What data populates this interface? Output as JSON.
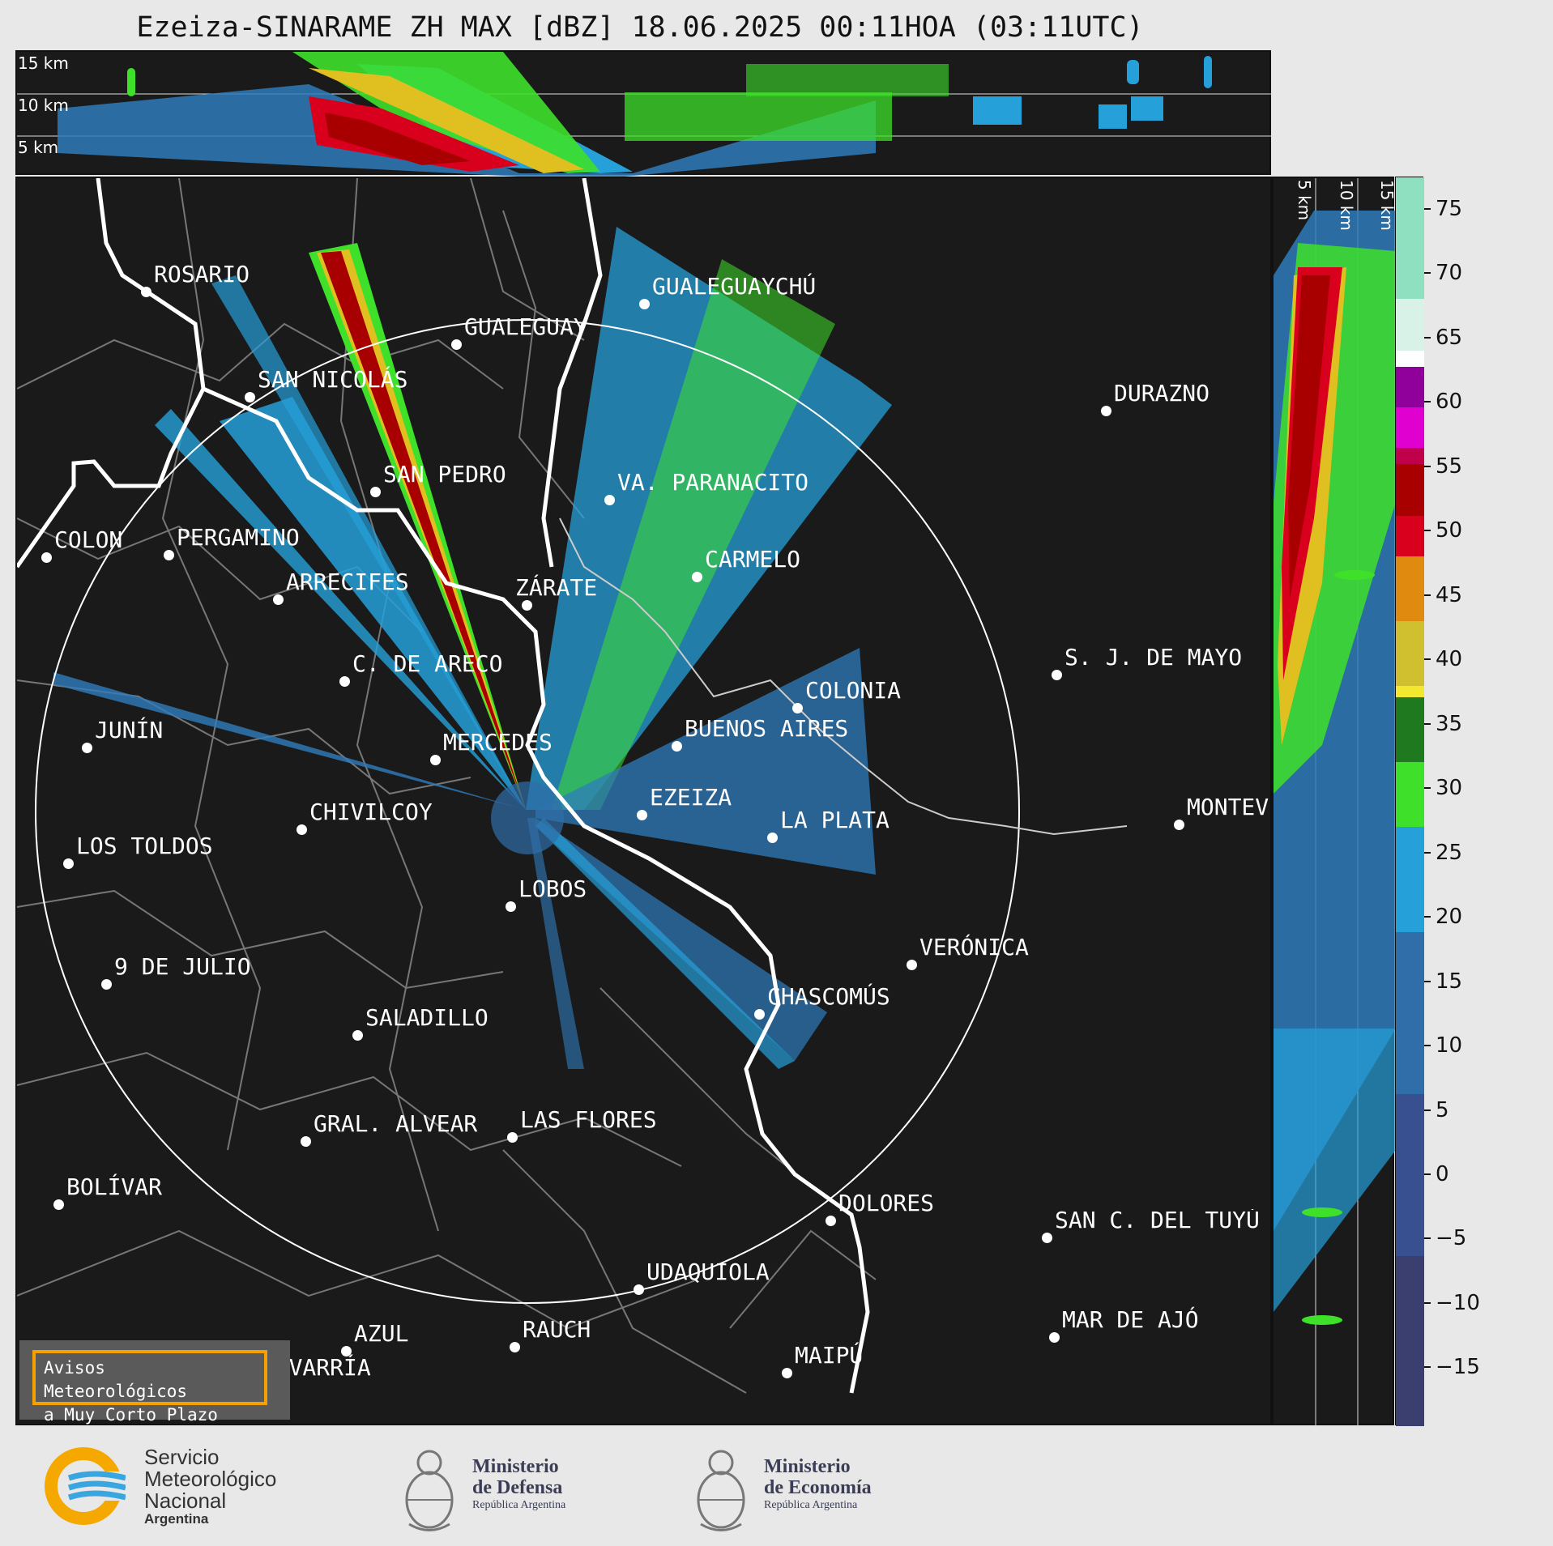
{
  "title": "Ezeiza-SINARAME ZH MAX [dBZ] 18.06.2025 00:11HOA (03:11UTC)",
  "top_panel": {
    "altitude_labels": [
      "15 km",
      "10 km",
      "5 km"
    ]
  },
  "right_panel": {
    "altitude_labels": [
      "5 km",
      "10 km",
      "15 km"
    ]
  },
  "colorbar": {
    "unit": "dBZ",
    "ticks": [
      "75",
      "70",
      "65",
      "60",
      "55",
      "50",
      "45",
      "40",
      "35",
      "30",
      "25",
      "20",
      "15",
      "10",
      "5",
      "0",
      "−5",
      "−10",
      "−15"
    ],
    "colors": {
      "very_light": "#3b3f70",
      "weak": "#2f6ea8",
      "light": "#25a0d8",
      "green": "#3ee02a",
      "dark_green": "#1f7a1f",
      "yellow": "#f2e830",
      "orange": "#e08a10",
      "red": "#d8001c",
      "dark_red": "#a80000",
      "magenta": "#e000d0",
      "purple": "#90009a",
      "white": "#ffffff",
      "mint": "#8ee0c0"
    }
  },
  "cities": [
    {
      "name": "ROSARIO"
    },
    {
      "name": "GUALEGUAYCHÚ"
    },
    {
      "name": "GUALEGUAY"
    },
    {
      "name": "SAN NICOLÁS"
    },
    {
      "name": "DURAZNO"
    },
    {
      "name": "SAN PEDRO"
    },
    {
      "name": "VA. PARANACITO"
    },
    {
      "name": "COLON"
    },
    {
      "name": "PERGAMINO"
    },
    {
      "name": "CARMELO"
    },
    {
      "name": "ARRECIFES"
    },
    {
      "name": "ZÁRATE"
    },
    {
      "name": "S. J. DE MAYO"
    },
    {
      "name": "C. DE ARECO"
    },
    {
      "name": "COLONIA"
    },
    {
      "name": "BUENOS AIRES"
    },
    {
      "name": "JUNÍN"
    },
    {
      "name": "MERCEDES"
    },
    {
      "name": "EZEIZA"
    },
    {
      "name": "MONTEVIDEO"
    },
    {
      "name": "CHIVILCOY"
    },
    {
      "name": "LA PLATA"
    },
    {
      "name": "LOS TOLDOS"
    },
    {
      "name": "LOBOS"
    },
    {
      "name": "VERÓNICA"
    },
    {
      "name": "9 DE JULIO"
    },
    {
      "name": "CHASCOMÚS"
    },
    {
      "name": "SALADILLO"
    },
    {
      "name": "GRAL. ALVEAR"
    },
    {
      "name": "LAS FLORES"
    },
    {
      "name": "BOLÍVAR"
    },
    {
      "name": "DOLORES"
    },
    {
      "name": "SAN C. DEL TUYÚ"
    },
    {
      "name": "UDAQUIOLA"
    },
    {
      "name": "AZUL"
    },
    {
      "name": "RAUCH"
    },
    {
      "name": "MAR DE AJÓ"
    },
    {
      "name": "OLAVARRÍA"
    },
    {
      "name": "MAIPÚ"
    }
  ],
  "avisos": {
    "line1": "Avisos Meteorológicos",
    "line2": "a Muy Corto Plazo"
  },
  "logos": {
    "smn": {
      "line1": "Servicio",
      "line2": "Meteorológico",
      "line3": "Nacional",
      "line4": "Argentina"
    },
    "defensa": {
      "line1": "Ministerio",
      "line2": "de Defensa",
      "line3": "República Argentina"
    },
    "economia": {
      "line1": "Ministerio",
      "line2": "de Economía",
      "line3": "República Argentina"
    }
  }
}
